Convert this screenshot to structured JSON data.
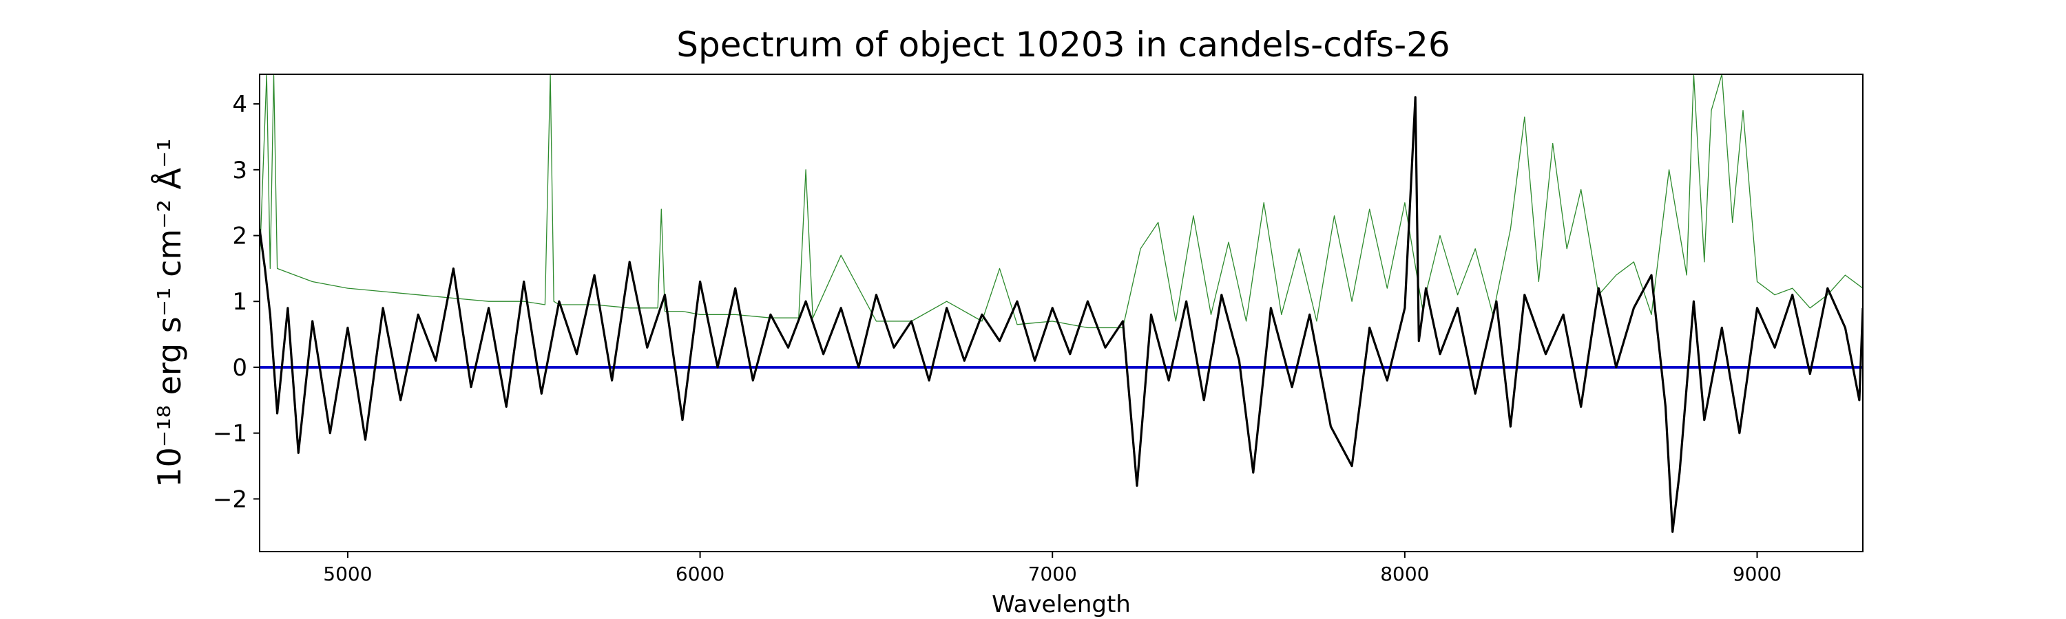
{
  "chart_data": {
    "type": "line",
    "title": "Spectrum of object 10203 in candels-cdfs-26",
    "xlabel": "Wavelength",
    "ylabel": "10⁻¹⁸ erg s⁻¹ cm⁻² Å⁻¹",
    "xlim": [
      4750,
      9300
    ],
    "ylim": [
      -2.8,
      4.45
    ],
    "xticks": [
      5000,
      6000,
      7000,
      8000,
      9000
    ],
    "xtick_labels": [
      "5000",
      "6000",
      "7000",
      "8000",
      "9000"
    ],
    "yticks": [
      -2,
      -1,
      0,
      1,
      2,
      3,
      4
    ],
    "ytick_labels": [
      "−2",
      "−1",
      "0",
      "1",
      "2",
      "3",
      "4"
    ],
    "grid": false,
    "series": [
      {
        "role": "flux",
        "color": "#000000",
        "x": [
          4750,
          4765,
          4780,
          4800,
          4830,
          4860,
          4900,
          4950,
          5000,
          5050,
          5100,
          5150,
          5200,
          5250,
          5300,
          5350,
          5400,
          5450,
          5500,
          5550,
          5600,
          5650,
          5700,
          5750,
          5800,
          5850,
          5900,
          5950,
          6000,
          6050,
          6100,
          6150,
          6200,
          6250,
          6300,
          6350,
          6400,
          6450,
          6500,
          6550,
          6600,
          6650,
          6700,
          6750,
          6800,
          6850,
          6900,
          6950,
          7000,
          7050,
          7100,
          7150,
          7200,
          7240,
          7280,
          7330,
          7380,
          7430,
          7480,
          7530,
          7570,
          7620,
          7680,
          7730,
          7790,
          7850,
          7900,
          7950,
          8000,
          8030,
          8040,
          8060,
          8100,
          8150,
          8200,
          8260,
          8300,
          8340,
          8400,
          8450,
          8500,
          8550,
          8600,
          8650,
          8700,
          8740,
          8760,
          8780,
          8820,
          8850,
          8900,
          8950,
          9000,
          9050,
          9100,
          9150,
          9200,
          9250,
          9290,
          9300
        ],
        "y": [
          2.1,
          1.5,
          0.8,
          -0.7,
          0.9,
          -1.3,
          0.7,
          -1.0,
          0.6,
          -1.1,
          0.9,
          -0.5,
          0.8,
          0.1,
          1.5,
          -0.3,
          0.9,
          -0.6,
          1.3,
          -0.4,
          1.0,
          0.2,
          1.4,
          -0.2,
          1.6,
          0.3,
          1.1,
          -0.8,
          1.3,
          0.0,
          1.2,
          -0.2,
          0.8,
          0.3,
          1.0,
          0.2,
          0.9,
          0.0,
          1.1,
          0.3,
          0.7,
          -0.2,
          0.9,
          0.1,
          0.8,
          0.4,
          1.0,
          0.1,
          0.9,
          0.2,
          1.0,
          0.3,
          0.7,
          -1.8,
          0.8,
          -0.2,
          1.0,
          -0.5,
          1.1,
          0.1,
          -1.6,
          0.9,
          -0.3,
          0.8,
          -0.9,
          -1.5,
          0.6,
          -0.2,
          0.9,
          4.1,
          0.4,
          1.2,
          0.2,
          0.9,
          -0.4,
          1.0,
          -0.9,
          1.1,
          0.2,
          0.8,
          -0.6,
          1.2,
          0.0,
          0.9,
          1.4,
          -0.6,
          -2.5,
          -1.6,
          1.0,
          -0.8,
          0.6,
          -1.0,
          0.9,
          0.3,
          1.1,
          -0.1,
          1.2,
          0.6,
          -0.5,
          0.9
        ]
      },
      {
        "role": "noise",
        "color": "#2e8b2e",
        "x": [
          4750,
          4770,
          4780,
          4790,
          4800,
          4850,
          4900,
          5000,
          5100,
          5200,
          5300,
          5400,
          5500,
          5560,
          5575,
          5585,
          5600,
          5700,
          5800,
          5880,
          5890,
          5900,
          5950,
          6000,
          6100,
          6200,
          6280,
          6300,
          6320,
          6400,
          6500,
          6600,
          6700,
          6800,
          6850,
          6900,
          7000,
          7100,
          7200,
          7250,
          7300,
          7350,
          7400,
          7450,
          7500,
          7550,
          7600,
          7650,
          7700,
          7750,
          7800,
          7850,
          7900,
          7950,
          8000,
          8050,
          8100,
          8150,
          8200,
          8250,
          8300,
          8340,
          8380,
          8420,
          8460,
          8500,
          8550,
          8600,
          8650,
          8700,
          8750,
          8800,
          8820,
          8850,
          8870,
          8900,
          8930,
          8960,
          9000,
          9050,
          9100,
          9150,
          9200,
          9250,
          9300
        ],
        "y": [
          1.6,
          4.45,
          1.5,
          4.45,
          1.5,
          1.4,
          1.3,
          1.2,
          1.15,
          1.1,
          1.05,
          1.0,
          1.0,
          0.95,
          4.45,
          1.0,
          0.95,
          0.95,
          0.9,
          0.9,
          2.4,
          0.85,
          0.85,
          0.8,
          0.8,
          0.75,
          0.75,
          3.0,
          0.75,
          1.7,
          0.7,
          0.7,
          1.0,
          0.7,
          1.5,
          0.65,
          0.7,
          0.6,
          0.6,
          1.8,
          2.2,
          0.7,
          2.3,
          0.8,
          1.9,
          0.7,
          2.5,
          0.8,
          1.8,
          0.7,
          2.3,
          1.0,
          2.4,
          1.2,
          2.5,
          0.9,
          2.0,
          1.1,
          1.8,
          0.8,
          2.1,
          3.8,
          1.3,
          3.4,
          1.8,
          2.7,
          1.1,
          1.4,
          1.6,
          0.8,
          3.0,
          1.4,
          4.45,
          1.6,
          3.9,
          4.45,
          2.2,
          3.9,
          1.3,
          1.1,
          1.2,
          0.9,
          1.1,
          1.4,
          1.2
        ]
      },
      {
        "role": "zero",
        "color": "#0000cc",
        "x": [
          4750,
          9300
        ],
        "y": [
          0,
          0
        ]
      }
    ]
  }
}
